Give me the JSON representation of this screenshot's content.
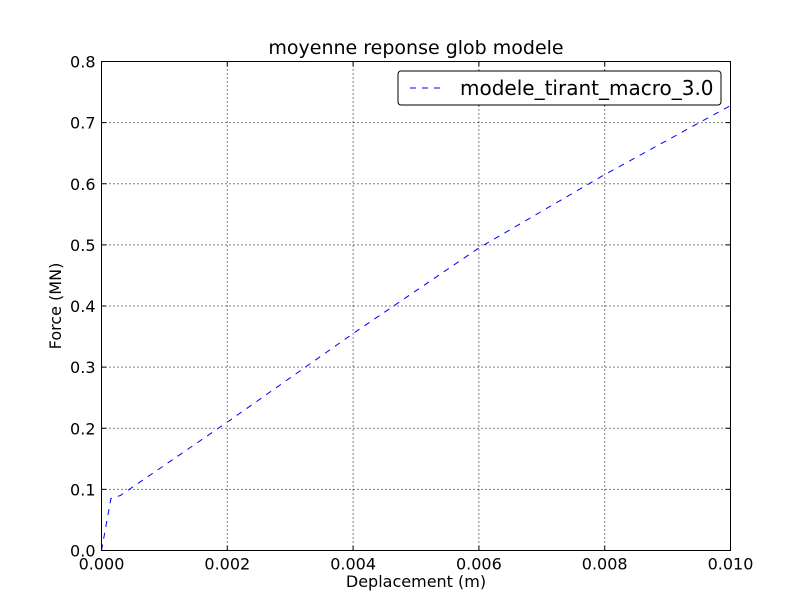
{
  "chart_data": {
    "type": "line",
    "title": "moyenne reponse glob modele",
    "xlabel": "Deplacement (m)",
    "ylabel": "Force (MN)",
    "xlim": [
      0.0,
      0.01
    ],
    "ylim": [
      0.0,
      0.8
    ],
    "x_ticks": [
      "0.000",
      "0.002",
      "0.004",
      "0.006",
      "0.008",
      "0.010"
    ],
    "y_ticks": [
      "0.0",
      "0.1",
      "0.2",
      "0.3",
      "0.4",
      "0.5",
      "0.6",
      "0.7",
      "0.8"
    ],
    "grid": true,
    "legend_position": "top-right",
    "series": [
      {
        "name": "modele_tirant_macro_3.0",
        "color": "#0000ff",
        "linestyle": "dashed",
        "x": [
          0.0,
          0.00015,
          0.0003,
          0.002,
          0.004,
          0.006,
          0.008,
          0.01
        ],
        "y": [
          0.0,
          0.085,
          0.09,
          0.21,
          0.355,
          0.495,
          0.615,
          0.728
        ]
      }
    ]
  }
}
